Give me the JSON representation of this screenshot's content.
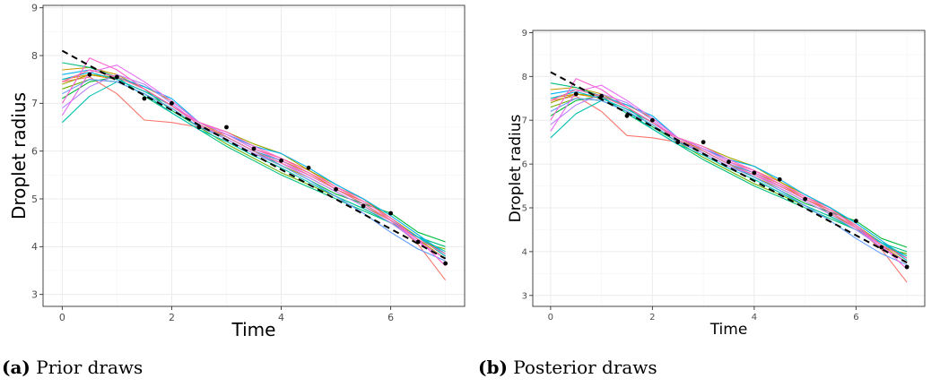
{
  "captions": [
    {
      "tag": "(a)",
      "text": "Prior draws"
    },
    {
      "tag": "(b)",
      "text": "Posterior draws"
    }
  ],
  "chart_data": [
    {
      "type": "line",
      "xlabel": "Time",
      "ylabel": "Droplet radius",
      "xlim": [
        -0.35,
        7.35
      ],
      "ylim": [
        2.75,
        9.05
      ],
      "xticks": [
        0,
        2,
        4,
        6
      ],
      "yticks": [
        3,
        4,
        5,
        6,
        7,
        8,
        9
      ],
      "grid": true,
      "legend": "none",
      "trend": {
        "style": "dashed",
        "color": "#000000",
        "x": [
          0,
          7
        ],
        "y": [
          8.1,
          3.75
        ]
      },
      "observed": {
        "x": [
          0.5,
          1.0,
          1.5,
          2.0,
          2.5,
          3.0,
          3.5,
          4.0,
          4.5,
          5.0,
          5.5,
          6.0,
          6.5,
          7.0
        ],
        "y": [
          7.6,
          7.55,
          7.1,
          7.0,
          6.5,
          6.5,
          6.05,
          5.8,
          5.65,
          5.2,
          4.85,
          4.7,
          4.1,
          3.65
        ]
      }
    },
    {
      "type": "line",
      "xlabel": "Time",
      "ylabel": "Droplet radius",
      "xlim": [
        -0.35,
        7.35
      ],
      "ylim": [
        2.75,
        9.05
      ],
      "xticks": [
        0,
        2,
        4,
        6
      ],
      "yticks": [
        3,
        4,
        5,
        6,
        7,
        8,
        9
      ],
      "grid": true,
      "legend": "none",
      "trend": {
        "style": "dashed",
        "color": "#000000",
        "x": [
          0,
          7
        ],
        "y": [
          8.1,
          3.75
        ]
      },
      "observed": {
        "x": [
          0.5,
          1.0,
          1.5,
          2.0,
          2.5,
          3.0,
          3.5,
          4.0,
          4.5,
          5.0,
          5.5,
          6.0,
          6.5,
          7.0
        ],
        "y": [
          7.6,
          7.55,
          7.1,
          7.0,
          6.5,
          6.5,
          6.05,
          5.8,
          5.65,
          5.2,
          4.85,
          4.7,
          4.1,
          3.65
        ]
      }
    }
  ],
  "draws": {
    "x": [
      0,
      0.5,
      1.0,
      1.5,
      2.0,
      2.5,
      3.0,
      3.5,
      4.0,
      4.5,
      5.0,
      5.5,
      6.0,
      6.5,
      7.0
    ],
    "colors": [
      "#F8766D",
      "#E58700",
      "#C99800",
      "#A3A500",
      "#6BB100",
      "#00BA38",
      "#00BF7D",
      "#00C0AF",
      "#00BCD8",
      "#00B0F6",
      "#619CFF",
      "#B983FF",
      "#E76BF3",
      "#FD61D1",
      "#FF67A4"
    ],
    "series": [
      [
        7.45,
        7.55,
        7.2,
        6.65,
        6.6,
        6.5,
        6.35,
        6.05,
        5.85,
        5.6,
        5.25,
        5.0,
        4.55,
        4.05,
        3.3
      ],
      [
        7.5,
        7.6,
        7.5,
        7.25,
        6.95,
        6.6,
        6.3,
        6.0,
        5.8,
        5.55,
        5.2,
        4.95,
        4.6,
        4.2,
        3.8
      ],
      [
        7.7,
        7.75,
        7.6,
        7.3,
        6.95,
        6.55,
        6.25,
        5.95,
        5.7,
        5.45,
        5.15,
        4.85,
        4.55,
        4.15,
        3.75
      ],
      [
        7.4,
        7.6,
        7.55,
        7.35,
        7.05,
        6.6,
        6.4,
        6.15,
        5.95,
        5.6,
        5.3,
        5.0,
        4.6,
        4.2,
        3.85
      ],
      [
        7.3,
        7.5,
        7.45,
        7.2,
        6.9,
        6.5,
        6.15,
        5.85,
        5.55,
        5.3,
        5.05,
        4.8,
        4.5,
        4.1,
        3.95
      ],
      [
        7.1,
        7.45,
        7.55,
        7.3,
        6.85,
        6.5,
        6.3,
        6.0,
        5.7,
        5.4,
        5.1,
        4.9,
        4.7,
        4.3,
        4.1
      ],
      [
        7.85,
        7.75,
        7.55,
        7.15,
        6.8,
        6.45,
        6.1,
        5.8,
        5.5,
        5.25,
        5.0,
        4.75,
        4.5,
        4.2,
        4.0
      ],
      [
        6.6,
        7.15,
        7.45,
        7.2,
        6.8,
        6.45,
        6.2,
        5.9,
        5.65,
        5.35,
        5.05,
        4.8,
        4.5,
        4.2,
        3.9
      ],
      [
        7.5,
        7.65,
        7.5,
        7.25,
        6.95,
        6.55,
        6.3,
        6.0,
        5.8,
        5.5,
        5.2,
        4.9,
        4.55,
        4.2,
        3.8
      ],
      [
        7.6,
        7.7,
        7.55,
        7.35,
        7.1,
        6.6,
        6.35,
        6.1,
        5.95,
        5.65,
        5.3,
        5.0,
        4.65,
        4.25,
        3.85
      ],
      [
        7.2,
        7.5,
        7.45,
        7.2,
        6.9,
        6.5,
        6.25,
        5.95,
        5.7,
        5.4,
        5.05,
        4.7,
        4.3,
        3.95,
        3.7
      ],
      [
        6.9,
        7.35,
        7.6,
        7.4,
        7.0,
        6.55,
        6.25,
        5.95,
        5.75,
        5.45,
        5.15,
        4.85,
        4.5,
        4.1,
        3.75
      ],
      [
        6.75,
        7.65,
        7.8,
        7.45,
        7.05,
        6.6,
        6.35,
        6.05,
        5.8,
        5.5,
        5.2,
        4.9,
        4.55,
        4.1,
        3.75
      ],
      [
        7.0,
        7.95,
        7.7,
        7.3,
        6.95,
        6.6,
        6.4,
        6.1,
        5.85,
        5.55,
        5.25,
        4.95,
        4.6,
        4.15,
        3.6
      ],
      [
        7.45,
        7.7,
        7.55,
        7.3,
        6.95,
        6.55,
        6.3,
        6.0,
        5.75,
        5.5,
        5.2,
        4.9,
        4.55,
        4.15,
        3.85
      ]
    ]
  }
}
